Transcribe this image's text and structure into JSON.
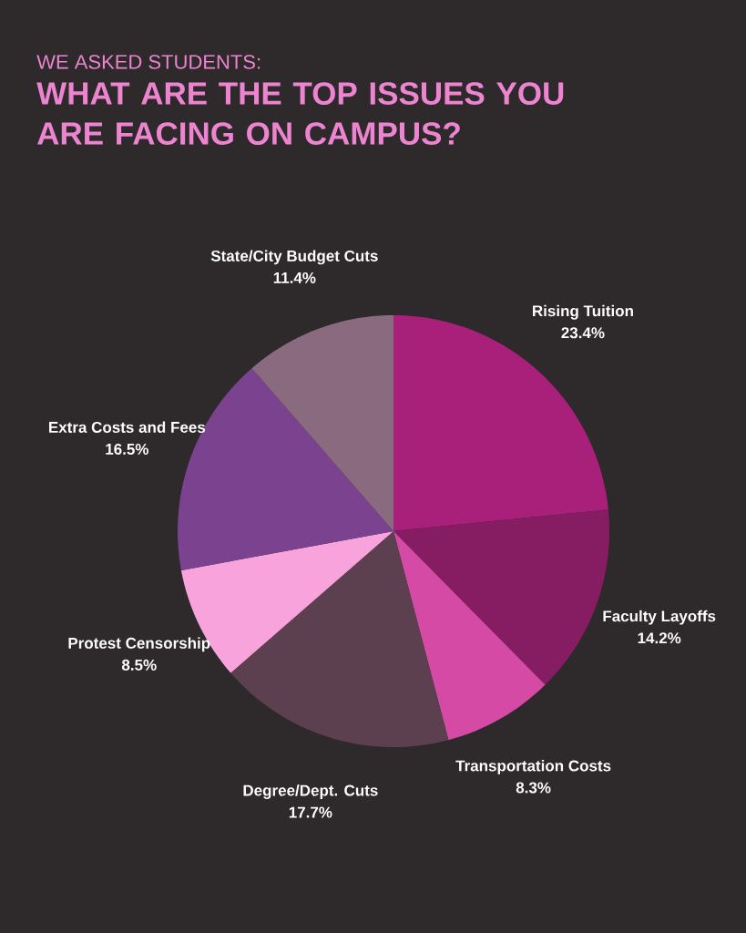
{
  "chart_data": {
    "type": "pie",
    "subtitle": "WE ASKED STUDENTS:",
    "title": "WHAT ARE THE TOP ISSUES YOU ARE FACING ON CAMPUS?",
    "categories": [
      "Rising Tuition",
      "Faculty Layoffs",
      "Transportation Costs",
      "Degree/Dept. Cuts",
      "Protest Censorship",
      "Extra Costs and Fees",
      "State/City Budget Cuts"
    ],
    "values": [
      23.4,
      14.2,
      8.3,
      17.7,
      8.5,
      16.5,
      11.4
    ],
    "value_labels": [
      "23.4%",
      "14.2%",
      "8.3%",
      "17.7%",
      "8.5%",
      "16.5%",
      "11.4%"
    ],
    "colors": [
      "#a8207a",
      "#861d62",
      "#d44aa5",
      "#5c4050",
      "#f9a3dc",
      "#7b4290",
      "#8a6a7e"
    ]
  }
}
